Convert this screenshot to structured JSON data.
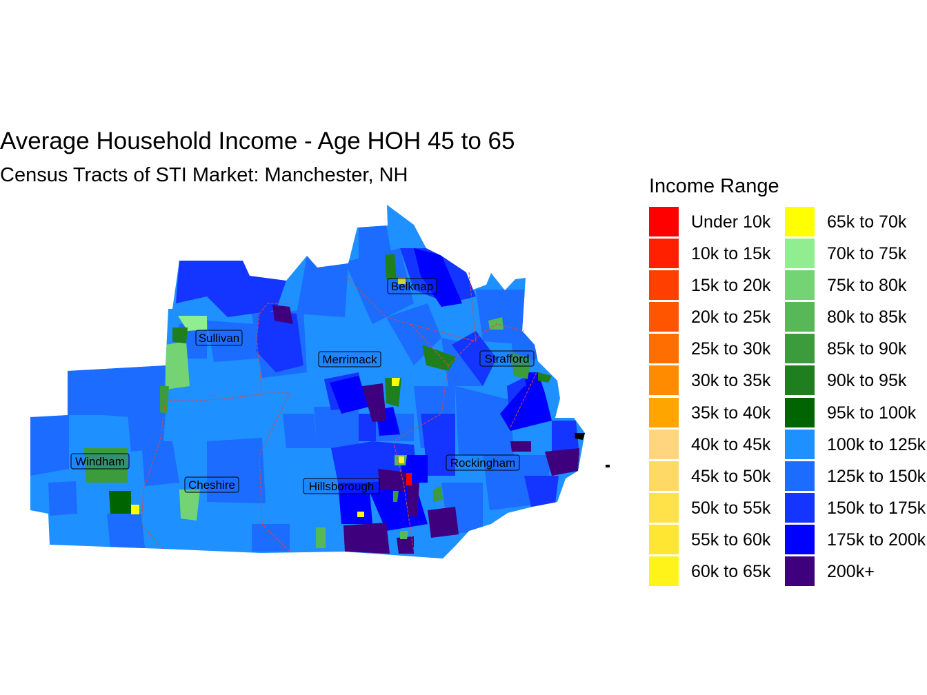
{
  "title": "Average Household Income - Age HOH 45 to 65",
  "subtitle": "Census Tracts of STI Market: Manchester, NH",
  "legend": {
    "title": "Income Range",
    "columns": [
      [
        {
          "label": "Under 10k",
          "color": "#ff0000"
        },
        {
          "label": "10k to 15k",
          "color": "#ff2000"
        },
        {
          "label": "15k to 20k",
          "color": "#ff3f00"
        },
        {
          "label": "20k to 25k",
          "color": "#ff5400"
        },
        {
          "label": "25k to 30k",
          "color": "#ff6e00"
        },
        {
          "label": "30k to 35k",
          "color": "#ff8c00"
        },
        {
          "label": "35k to 40k",
          "color": "#ffa500"
        },
        {
          "label": "40k to 45k",
          "color": "#ffd580"
        },
        {
          "label": "45k to 50k",
          "color": "#ffd966"
        },
        {
          "label": "50k to 55k",
          "color": "#ffe14a"
        },
        {
          "label": "55k to 60k",
          "color": "#ffe633"
        },
        {
          "label": "60k to 65k",
          "color": "#fff31a"
        }
      ],
      [
        {
          "label": "65k to 70k",
          "color": "#ffff00"
        },
        {
          "label": "70k to 75k",
          "color": "#90ee90"
        },
        {
          "label": "75k to 80k",
          "color": "#74d474"
        },
        {
          "label": "80k to 85k",
          "color": "#58b858"
        },
        {
          "label": "85k to 90k",
          "color": "#3c9c3c"
        },
        {
          "label": "90k to 95k",
          "color": "#1f7f1f"
        },
        {
          "label": "95k to 100k",
          "color": "#006400"
        },
        {
          "label": "100k to 125k",
          "color": "#1e90ff"
        },
        {
          "label": "125k to 150k",
          "color": "#1c6cff"
        },
        {
          "label": "150k to 175k",
          "color": "#1435ff"
        },
        {
          "label": "175k to 200k",
          "color": "#0000ff"
        },
        {
          "label": "200k+",
          "color": "#3f007d"
        }
      ]
    ]
  },
  "counties": [
    {
      "name": "Belknap"
    },
    {
      "name": "Sullivan"
    },
    {
      "name": "Merrimack"
    },
    {
      "name": "Strafford"
    },
    {
      "name": "Windham"
    },
    {
      "name": "Rockingham"
    },
    {
      "name": "Cheshire"
    },
    {
      "name": "Hillsborough"
    }
  ]
}
